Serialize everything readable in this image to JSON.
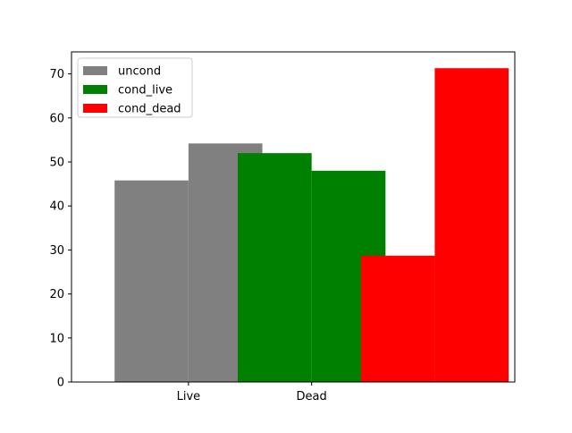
{
  "chart_data": {
    "type": "bar",
    "title": "",
    "xlabel": "",
    "ylabel": "",
    "ylim": [
      0,
      75
    ],
    "yticks": [
      0,
      10,
      20,
      30,
      40,
      50,
      60,
      70
    ],
    "xticks": [
      {
        "label": "Live",
        "value": 0
      },
      {
        "label": "Dead",
        "value": 1
      }
    ],
    "xlim": [
      -0.95,
      2.65
    ],
    "grid": false,
    "legend_placement": "top-left",
    "series": [
      {
        "name": "uncond",
        "color": "#808080",
        "bars": [
          {
            "x_start": -0.6,
            "x_end": 0.0,
            "value": 45.8
          },
          {
            "x_start": 0.0,
            "x_end": 0.6,
            "value": 54.2
          }
        ]
      },
      {
        "name": "cond_live",
        "color": "#008000",
        "bars": [
          {
            "x_start": 0.4,
            "x_end": 1.0,
            "value": 52.0
          },
          {
            "x_start": 1.0,
            "x_end": 1.6,
            "value": 48.0
          }
        ]
      },
      {
        "name": "cond_dead",
        "color": "#ff0000",
        "bars": [
          {
            "x_start": 1.4,
            "x_end": 2.0,
            "value": 28.7
          },
          {
            "x_start": 2.0,
            "x_end": 2.6,
            "value": 71.3
          }
        ]
      }
    ]
  }
}
